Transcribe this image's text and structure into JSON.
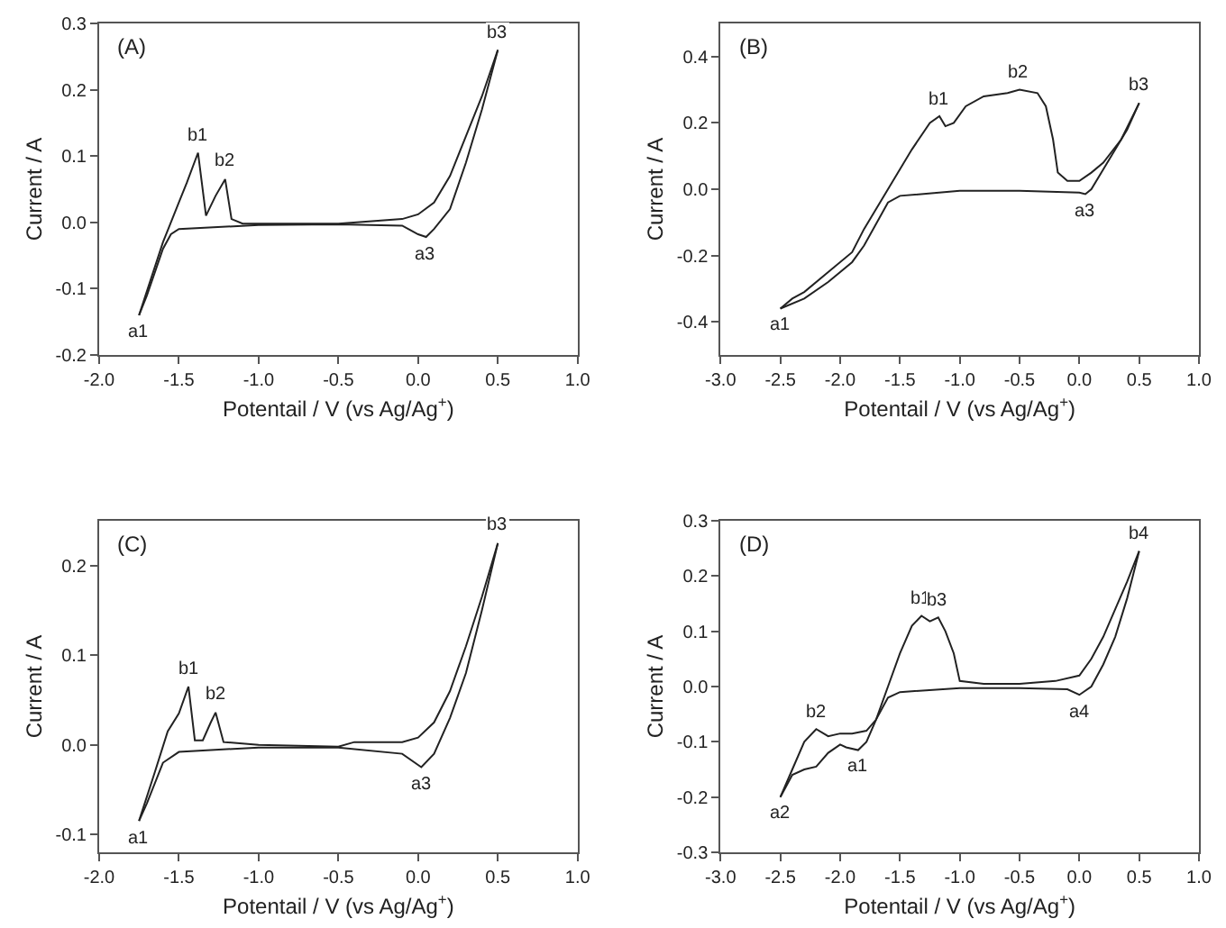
{
  "chart_data": [
    {
      "type": "line",
      "title": "(A)",
      "xlabel": "Potentail / V (vs Ag/Ag$^{+}$)",
      "ylabel": "Current / A",
      "xlim": [
        -2,
        1
      ],
      "ylim": [
        -0.2,
        0.3
      ],
      "xticks": [
        {
          "value": -2,
          "label": "-2.0"
        },
        {
          "value": -1.5,
          "label": "-1.5"
        },
        {
          "value": -1,
          "label": "-1.0"
        },
        {
          "value": -0.5,
          "label": "-0.5"
        },
        {
          "value": 0,
          "label": "0.0"
        },
        {
          "value": 0.5,
          "label": "0.5"
        },
        {
          "value": 1,
          "label": "1.0"
        }
      ],
      "yticks": [
        {
          "value": -0.2,
          "label": "-0.2"
        },
        {
          "value": -0.1,
          "label": "-0.1"
        },
        {
          "value": 0,
          "label": "0.0"
        },
        {
          "value": 0.1,
          "label": "0.1"
        },
        {
          "value": 0.2,
          "label": "0.2"
        },
        {
          "value": 0.3,
          "label": "0.3"
        }
      ],
      "grid": false,
      "marker": "none",
      "line_style": "solid",
      "series": [
        {
          "color": "#222222",
          "x": [
            -1.75,
            -1.6,
            -1.5,
            -1.45,
            -1.38,
            -1.33,
            -1.27,
            -1.21,
            -1.17,
            -1.1,
            -0.5,
            -0.1,
            0.0,
            0.1,
            0.2,
            0.3,
            0.4,
            0.5
          ],
          "values": [
            -0.14,
            -0.03,
            0.03,
            0.06,
            0.105,
            0.01,
            0.04,
            0.065,
            0.005,
            -0.002,
            -0.002,
            0.005,
            0.012,
            0.03,
            0.07,
            0.13,
            0.19,
            0.26
          ]
        },
        {
          "color": "#222222",
          "x": [
            0.5,
            0.4,
            0.3,
            0.2,
            0.1,
            0.05,
            0.0,
            -0.1,
            -0.5,
            -1.0,
            -1.5,
            -1.55,
            -1.6,
            -1.7,
            -1.75
          ],
          "values": [
            0.26,
            0.17,
            0.09,
            0.02,
            -0.01,
            -0.022,
            -0.018,
            -0.005,
            -0.003,
            -0.004,
            -0.01,
            -0.018,
            -0.04,
            -0.11,
            -0.14
          ]
        }
      ],
      "annotations": [
        {
          "text": "b1",
          "x": -1.38,
          "y": 0.105
        },
        {
          "text": "b2",
          "x": -1.21,
          "y": 0.065
        },
        {
          "text": "b3",
          "x": 0.5,
          "y": 0.26
        },
        {
          "text": "a1",
          "x": -1.75,
          "y": -0.14
        },
        {
          "text": "a3",
          "x": 0.05,
          "y": -0.022
        }
      ]
    },
    {
      "type": "line",
      "title": "(B)",
      "xlabel": "Potentail / V (vs Ag/Ag$^{+}$)",
      "ylabel": "Current / A",
      "xlim": [
        -3,
        1
      ],
      "ylim": [
        -0.5,
        0.5
      ],
      "xticks": [
        {
          "value": -3,
          "label": "-3.0"
        },
        {
          "value": -2.5,
          "label": "-2.5"
        },
        {
          "value": -2,
          "label": "-2.0"
        },
        {
          "value": -1.5,
          "label": "-1.5"
        },
        {
          "value": -1,
          "label": "-1.0"
        },
        {
          "value": -0.5,
          "label": "-0.5"
        },
        {
          "value": 0,
          "label": "0.0"
        },
        {
          "value": 0.5,
          "label": "0.5"
        },
        {
          "value": 1,
          "label": "1.0"
        }
      ],
      "yticks": [
        {
          "value": -0.4,
          "label": "-0.4"
        },
        {
          "value": -0.2,
          "label": "-0.2"
        },
        {
          "value": 0,
          "label": "0.0"
        },
        {
          "value": 0.2,
          "label": "0.2"
        },
        {
          "value": 0.4,
          "label": "0.4"
        }
      ],
      "grid": false,
      "marker": "none",
      "line_style": "solid",
      "series": [
        {
          "color": "#222222",
          "x": [
            -2.5,
            -2.4,
            -2.3,
            -2.1,
            -1.9,
            -1.8,
            -1.6,
            -1.4,
            -1.25,
            -1.17,
            -1.12,
            -1.05,
            -0.95,
            -0.8,
            -0.6,
            -0.5,
            -0.35,
            -0.28,
            -0.22,
            -0.18,
            -0.1,
            0.0,
            0.1,
            0.2,
            0.35,
            0.5
          ],
          "values": [
            -0.36,
            -0.33,
            -0.31,
            -0.25,
            -0.19,
            -0.12,
            0.0,
            0.12,
            0.2,
            0.22,
            0.19,
            0.2,
            0.25,
            0.28,
            0.29,
            0.3,
            0.29,
            0.25,
            0.15,
            0.05,
            0.025,
            0.025,
            0.05,
            0.08,
            0.15,
            0.26
          ]
        },
        {
          "color": "#222222",
          "x": [
            0.5,
            0.4,
            0.2,
            0.1,
            0.05,
            0.0,
            -0.5,
            -1.0,
            -1.5,
            -1.6,
            -1.8,
            -1.9,
            -2.1,
            -2.3,
            -2.5
          ],
          "values": [
            0.26,
            0.18,
            0.06,
            0.0,
            -0.015,
            -0.01,
            -0.005,
            -0.005,
            -0.02,
            -0.04,
            -0.17,
            -0.22,
            -0.28,
            -0.33,
            -0.36
          ]
        }
      ],
      "annotations": [
        {
          "text": "b1",
          "x": -1.17,
          "y": 0.22
        },
        {
          "text": "b2",
          "x": -0.5,
          "y": 0.3
        },
        {
          "text": "b3",
          "x": 0.5,
          "y": 0.26
        },
        {
          "text": "a1",
          "x": -2.5,
          "y": -0.36
        },
        {
          "text": "a3",
          "x": 0.05,
          "y": -0.015
        }
      ]
    },
    {
      "type": "line",
      "title": "(C)",
      "xlabel": "Potentail / V (vs Ag/Ag$^{+}$)",
      "ylabel": "Current / A",
      "xlim": [
        -2,
        1
      ],
      "ylim": [
        -0.12,
        0.25
      ],
      "xticks": [
        {
          "value": -2,
          "label": "-2.0"
        },
        {
          "value": -1.5,
          "label": "-1.5"
        },
        {
          "value": -1,
          "label": "-1.0"
        },
        {
          "value": -0.5,
          "label": "-0.5"
        },
        {
          "value": 0,
          "label": "0.0"
        },
        {
          "value": 0.5,
          "label": "0.5"
        },
        {
          "value": 1,
          "label": "1.0"
        }
      ],
      "yticks": [
        {
          "value": -0.1,
          "label": "-0.1"
        },
        {
          "value": 0,
          "label": "0.0"
        },
        {
          "value": 0.1,
          "label": "0.1"
        },
        {
          "value": 0.2,
          "label": "0.2"
        }
      ],
      "grid": false,
      "marker": "none",
      "line_style": "solid",
      "series": [
        {
          "color": "#222222",
          "x": [
            -1.75,
            -1.65,
            -1.57,
            -1.5,
            -1.44,
            -1.4,
            -1.35,
            -1.3,
            -1.27,
            -1.22,
            -1.0,
            -0.5,
            -0.4,
            -0.1,
            0.0,
            0.1,
            0.2,
            0.3,
            0.4,
            0.5
          ],
          "values": [
            -0.085,
            -0.03,
            0.015,
            0.035,
            0.065,
            0.005,
            0.005,
            0.025,
            0.036,
            0.003,
            0.0,
            -0.002,
            0.003,
            0.003,
            0.008,
            0.025,
            0.06,
            0.11,
            0.165,
            0.225
          ]
        },
        {
          "color": "#222222",
          "x": [
            0.5,
            0.4,
            0.3,
            0.2,
            0.1,
            0.02,
            -0.1,
            -0.5,
            -1.0,
            -1.5,
            -1.6,
            -1.7,
            -1.75
          ],
          "values": [
            0.225,
            0.15,
            0.08,
            0.03,
            -0.01,
            -0.025,
            -0.01,
            -0.003,
            -0.003,
            -0.008,
            -0.02,
            -0.065,
            -0.085
          ]
        }
      ],
      "annotations": [
        {
          "text": "b1",
          "x": -1.44,
          "y": 0.065
        },
        {
          "text": "b2",
          "x": -1.27,
          "y": 0.036
        },
        {
          "text": "b3",
          "x": 0.5,
          "y": 0.225
        },
        {
          "text": "a1",
          "x": -1.75,
          "y": -0.085
        },
        {
          "text": "a3",
          "x": 0.02,
          "y": -0.025
        }
      ]
    },
    {
      "type": "line",
      "title": "(D)",
      "xlabel": "Potentail / V (vs Ag/Ag$^{+}$)",
      "ylabel": "Current / A",
      "xlim": [
        -3,
        1
      ],
      "ylim": [
        -0.3,
        0.3
      ],
      "xticks": [
        {
          "value": -3,
          "label": "-3.0"
        },
        {
          "value": -2.5,
          "label": "-2.5"
        },
        {
          "value": -2,
          "label": "-2.0"
        },
        {
          "value": -1.5,
          "label": "-1.5"
        },
        {
          "value": -1,
          "label": "-1.0"
        },
        {
          "value": -0.5,
          "label": "-0.5"
        },
        {
          "value": 0,
          "label": "0.0"
        },
        {
          "value": 0.5,
          "label": "0.5"
        },
        {
          "value": 1,
          "label": "1.0"
        }
      ],
      "yticks": [
        {
          "value": -0.3,
          "label": "-0.3"
        },
        {
          "value": -0.2,
          "label": "-0.2"
        },
        {
          "value": -0.1,
          "label": "-0.1"
        },
        {
          "value": 0,
          "label": "0.0"
        },
        {
          "value": 0.1,
          "label": "0.1"
        },
        {
          "value": 0.2,
          "label": "0.2"
        },
        {
          "value": 0.3,
          "label": "0.3"
        }
      ],
      "grid": false,
      "marker": "none",
      "line_style": "solid",
      "series": [
        {
          "color": "#222222",
          "x": [
            -2.5,
            -2.4,
            -2.3,
            -2.2,
            -2.1,
            -2.0,
            -1.95,
            -1.85,
            -1.78,
            -1.7,
            -1.6,
            -1.5,
            -1.4,
            -1.32,
            -1.25,
            -1.18,
            -1.12,
            -1.05,
            -1.0,
            -0.8,
            -0.5,
            -0.2,
            0.0,
            0.1,
            0.2,
            0.3,
            0.4,
            0.5
          ],
          "values": [
            -0.2,
            -0.16,
            -0.15,
            -0.145,
            -0.12,
            -0.105,
            -0.11,
            -0.115,
            -0.1,
            -0.06,
            0.0,
            0.06,
            0.11,
            0.128,
            0.118,
            0.125,
            0.1,
            0.06,
            0.01,
            0.005,
            0.005,
            0.01,
            0.02,
            0.05,
            0.09,
            0.14,
            0.19,
            0.245
          ]
        },
        {
          "color": "#222222",
          "x": [
            0.5,
            0.4,
            0.3,
            0.2,
            0.1,
            0.0,
            -0.1,
            -0.5,
            -1.0,
            -1.5,
            -1.6,
            -1.7,
            -1.78,
            -1.9,
            -2.0,
            -2.1,
            -2.2,
            -2.3,
            -2.4,
            -2.5
          ],
          "values": [
            0.245,
            0.16,
            0.09,
            0.04,
            0.0,
            -0.015,
            -0.005,
            -0.003,
            -0.003,
            -0.01,
            -0.02,
            -0.06,
            -0.08,
            -0.085,
            -0.085,
            -0.09,
            -0.077,
            -0.1,
            -0.15,
            -0.2
          ]
        }
      ],
      "annotations": [
        {
          "text": "b1",
          "x": -1.32,
          "y": 0.128
        },
        {
          "text": "b3",
          "x": -1.18,
          "y": 0.125
        },
        {
          "text": "b2",
          "x": -2.2,
          "y": -0.077
        },
        {
          "text": "a1",
          "x": -1.85,
          "y": -0.115
        },
        {
          "text": "a2",
          "x": -2.5,
          "y": -0.2
        },
        {
          "text": "a4",
          "x": 0.0,
          "y": -0.015
        },
        {
          "text": "b4",
          "x": 0.5,
          "y": 0.245
        }
      ]
    }
  ]
}
